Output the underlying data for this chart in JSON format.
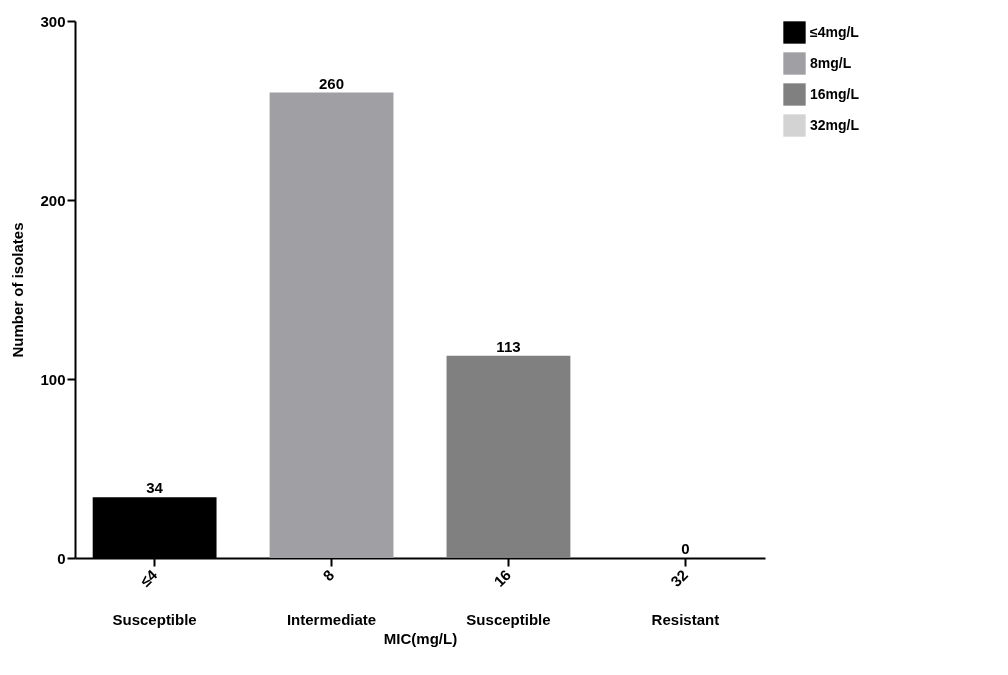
{
  "chart_data": {
    "type": "bar",
    "xlabel": "MIC(mg/L)",
    "ylabel": "Number of isolates",
    "categories": [
      "≤4",
      "8",
      "16",
      "32"
    ],
    "series": [
      {
        "name": "≤4mg/L",
        "color": "#000000",
        "values": [
          34,
          null,
          null,
          null
        ]
      },
      {
        "name": "8mg/L",
        "color": "#a0a0a4",
        "values": [
          null,
          260,
          null,
          null
        ]
      },
      {
        "name": "16mg/L",
        "color": "#808080",
        "values": [
          null,
          null,
          113,
          null
        ]
      },
      {
        "name": "32mg/L",
        "color": "#d3d3d3",
        "values": [
          null,
          null,
          null,
          0
        ]
      }
    ],
    "ylim": [
      0,
      300
    ],
    "yticks": [
      0,
      100,
      200,
      300
    ],
    "grid": false,
    "legend": "top right",
    "data_labels": true,
    "annotations": [
      "Susceptible",
      "Intermediate",
      "Susceptible",
      "Resistant"
    ]
  }
}
